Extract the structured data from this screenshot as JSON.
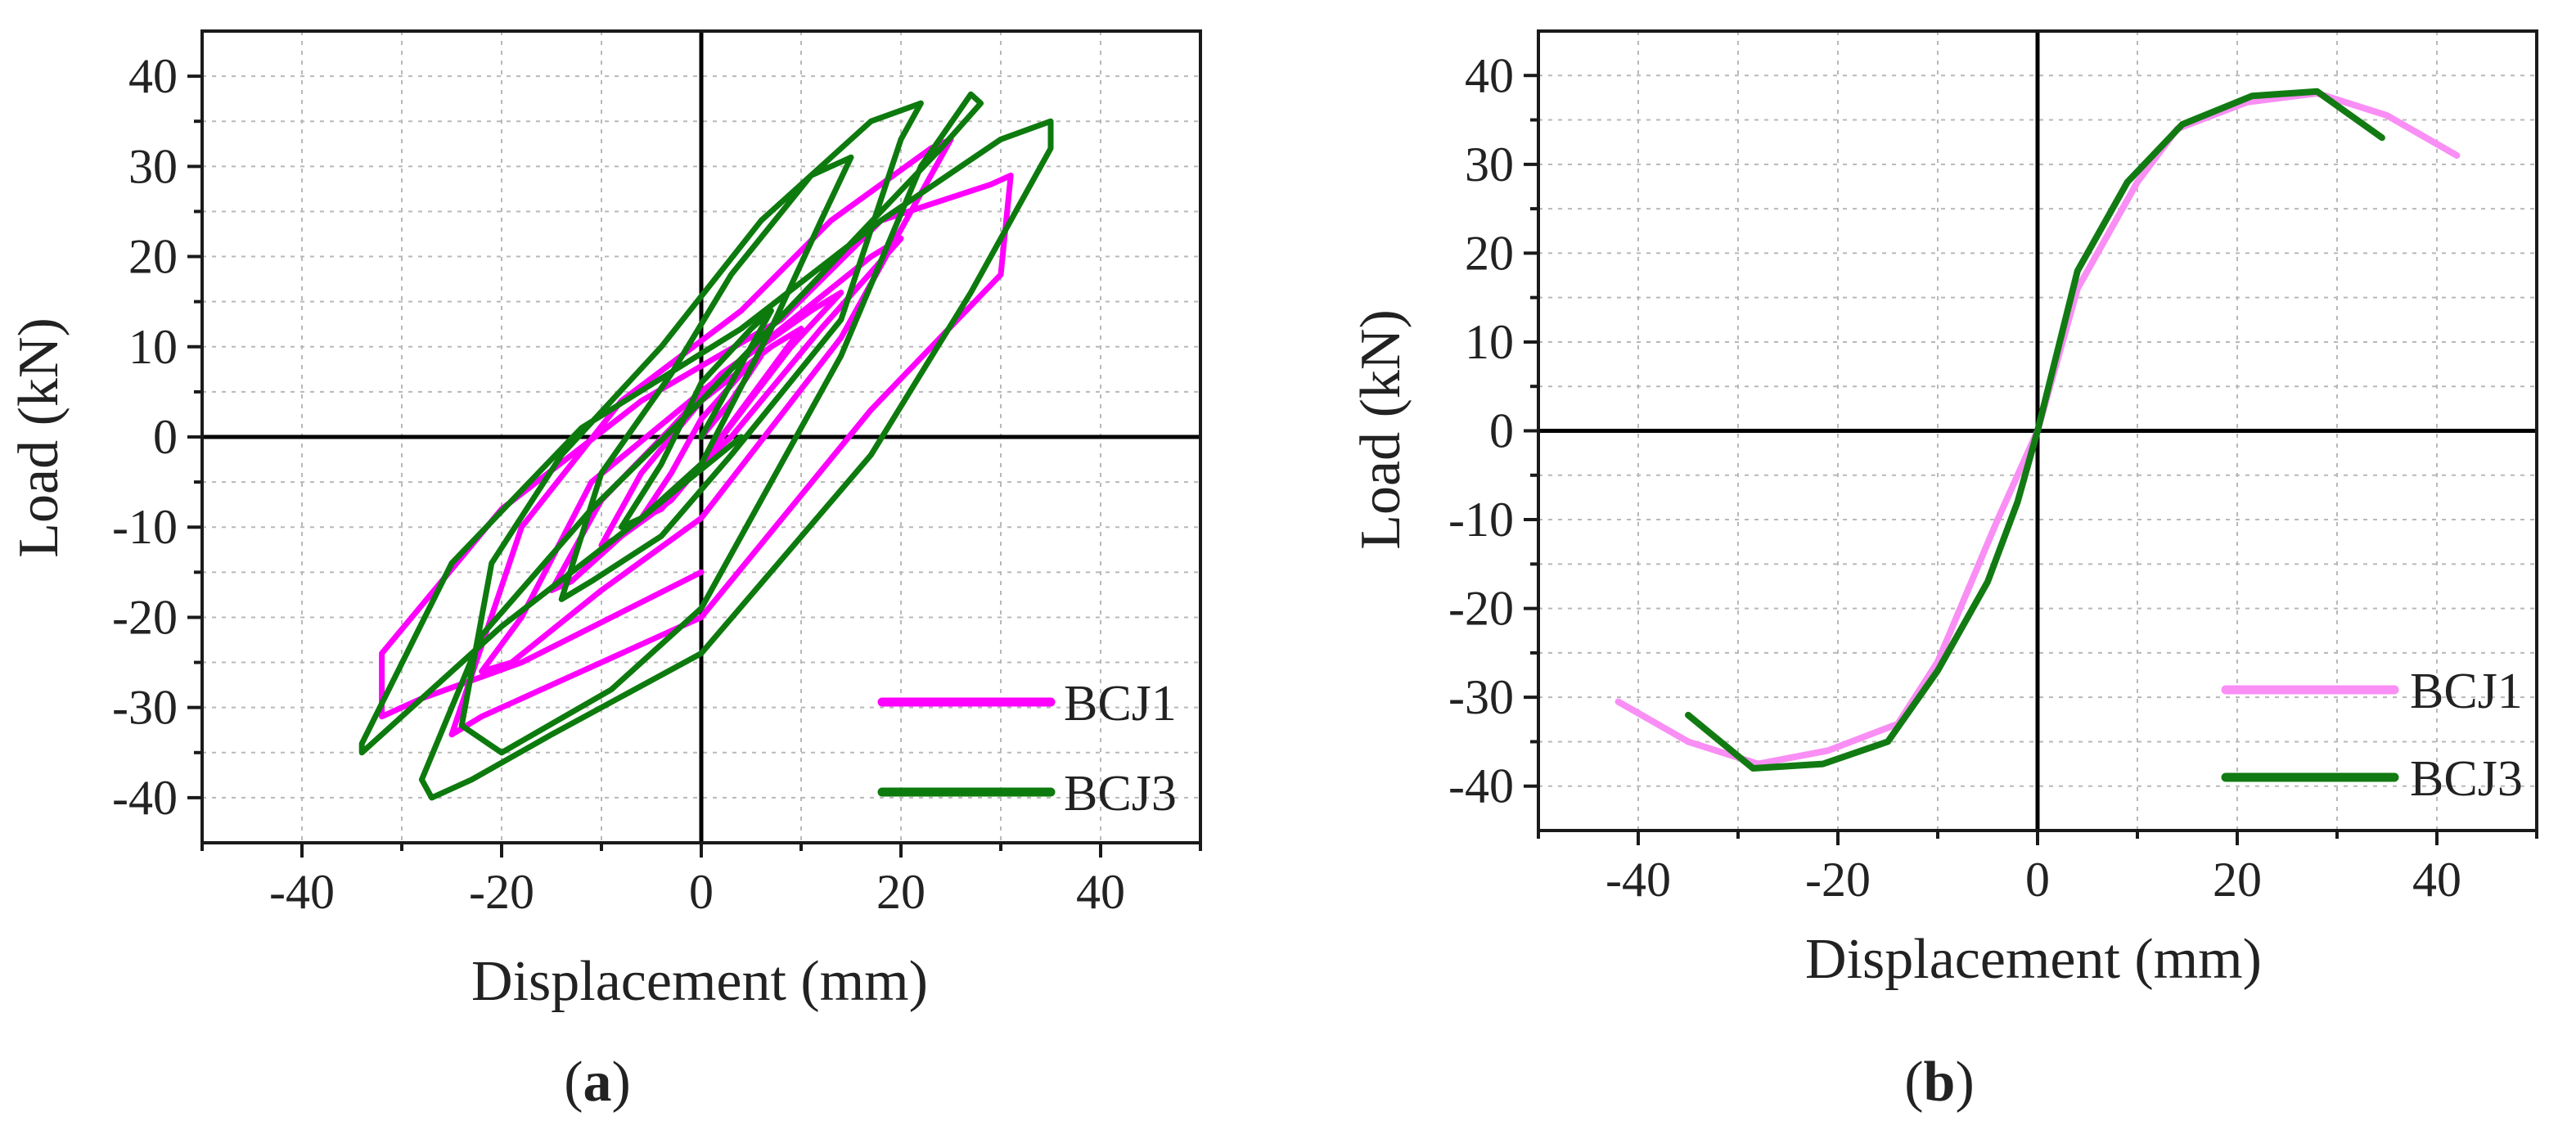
{
  "colors": {
    "bcj1_a": "#ff00ff",
    "bcj3_a": "#0d7a0d",
    "bcj1_b": "#f98ef5",
    "bcj3_b": "#127a12",
    "grid": "#b8b8b8",
    "axis": "#1a1a1a"
  },
  "chart_data": [
    {
      "type": "line",
      "panel": "a",
      "caption": {
        "open": "(",
        "letter": "a",
        "close": ")"
      },
      "xlabel": "Displacement (mm)",
      "ylabel": "Load (kN)",
      "xlim": [
        -50,
        50
      ],
      "ylim": [
        -45,
        45
      ],
      "xticks": [
        -40,
        -20,
        0,
        20,
        40
      ],
      "yticks": [
        -40,
        -30,
        -20,
        -10,
        0,
        10,
        20,
        30,
        40
      ],
      "xtick_labels": [
        "-40",
        "-20",
        "0",
        "20",
        "40"
      ],
      "ytick_labels": [
        "-40",
        "-30",
        "-20",
        "-10",
        "0",
        "10",
        "20",
        "30",
        "40"
      ],
      "grid": true,
      "legend_position": "bottom-right",
      "series": [
        {
          "name": "BCJ1",
          "color_key": "bcj1_a",
          "x": [
            0,
            3,
            6,
            4,
            0,
            -3,
            -6,
            -4,
            0,
            6,
            10,
            7,
            0,
            -6,
            -10,
            -8,
            -3,
            0,
            9,
            14,
            11,
            2,
            -3,
            -10,
            -15,
            -13,
            -5,
            3,
            12,
            20,
            17,
            8,
            0,
            -11,
            -18,
            -22,
            -19,
            -10,
            0,
            14,
            25,
            23,
            13,
            4,
            -8,
            -18,
            -25,
            -22,
            -14,
            0,
            17,
            30,
            31,
            29,
            18,
            8,
            -6,
            -20,
            -32,
            -32,
            -28,
            -18,
            0
          ],
          "y": [
            0,
            4,
            9,
            7,
            2,
            -4,
            -9,
            -8,
            -3,
            6,
            12,
            10,
            4,
            -4,
            -12,
            -11,
            -7,
            -3,
            10,
            16,
            14,
            7,
            1,
            -7,
            -17,
            -16,
            -8,
            0,
            12,
            22,
            20,
            12,
            5,
            -5,
            -20,
            -26,
            -25,
            -17,
            -9,
            11,
            33,
            32,
            24,
            14,
            4,
            -10,
            -33,
            -31,
            -27,
            -20,
            3,
            18,
            29,
            28,
            24,
            13,
            4,
            -8,
            -24,
            -31,
            -29,
            -25,
            -15
          ]
        },
        {
          "name": "BCJ3",
          "color_key": "bcj3_a",
          "x": [
            0,
            4,
            7,
            5,
            0,
            -4,
            -8,
            -6,
            0,
            7,
            12,
            15,
            11,
            3,
            -3,
            -10,
            -14,
            -11,
            -4,
            3,
            14,
            20,
            22,
            17,
            6,
            -4,
            -14,
            -21,
            -24,
            -20,
            -9,
            0,
            14,
            22,
            27,
            28,
            24,
            12,
            0,
            -11,
            -22,
            -28,
            -27,
            -23,
            -15,
            0,
            17,
            27,
            35,
            35,
            30,
            18,
            4,
            -12,
            -25,
            -34,
            -34,
            -29,
            -20,
            -6,
            4
          ],
          "y": [
            0,
            8,
            14,
            12,
            6,
            -3,
            -10,
            -9,
            -3,
            12,
            24,
            31,
            29,
            18,
            7,
            -4,
            -18,
            -16,
            -11,
            -2,
            13,
            33,
            37,
            35,
            24,
            10,
            -2,
            -14,
            -32,
            -35,
            -28,
            -19,
            9,
            30,
            38,
            37,
            32,
            18,
            4,
            -8,
            -22,
            -38,
            -40,
            -38,
            -33,
            -24,
            -2,
            16,
            32,
            35,
            33,
            24,
            12,
            1,
            -14,
            -34,
            -35,
            -30,
            -21,
            -9,
            0
          ]
        }
      ]
    },
    {
      "type": "line",
      "panel": "b",
      "caption": {
        "open": "(",
        "letter": "b",
        "close": ")"
      },
      "xlabel": "Displacement (mm)",
      "ylabel": "Load (kN)",
      "xlim": [
        -50,
        50
      ],
      "ylim": [
        -45,
        45
      ],
      "xticks": [
        -40,
        -20,
        0,
        20,
        40
      ],
      "yticks": [
        -40,
        -30,
        -20,
        -10,
        0,
        10,
        20,
        30,
        40
      ],
      "xtick_labels": [
        "-40",
        "-20",
        "0",
        "20",
        "40"
      ],
      "ytick_labels": [
        "-40",
        "-30",
        "-20",
        "-10",
        "0",
        "10",
        "20",
        "30",
        "40"
      ],
      "grid": true,
      "legend_position": "bottom-right",
      "series": [
        {
          "name": "BCJ1",
          "color_key": "bcj1_b",
          "x": [
            -42,
            -35,
            -28,
            -21,
            -14,
            -10,
            -4,
            0,
            4,
            10,
            14,
            21,
            28,
            35,
            42
          ],
          "y": [
            -30.5,
            -35,
            -37.5,
            -36,
            -33,
            -26,
            -10,
            0,
            16,
            28,
            34,
            37,
            38,
            35.5,
            31
          ]
        },
        {
          "name": "BCJ3",
          "color_key": "bcj3_b",
          "x": [
            -35,
            -28.5,
            -21.5,
            -15,
            -10,
            -5,
            -2,
            0,
            4,
            9,
            14.5,
            21.5,
            28,
            34.5
          ],
          "y": [
            -32,
            -38,
            -37.5,
            -35,
            -27,
            -17,
            -8,
            0,
            18,
            28,
            34.5,
            37.7,
            38.2,
            33
          ]
        }
      ]
    }
  ]
}
